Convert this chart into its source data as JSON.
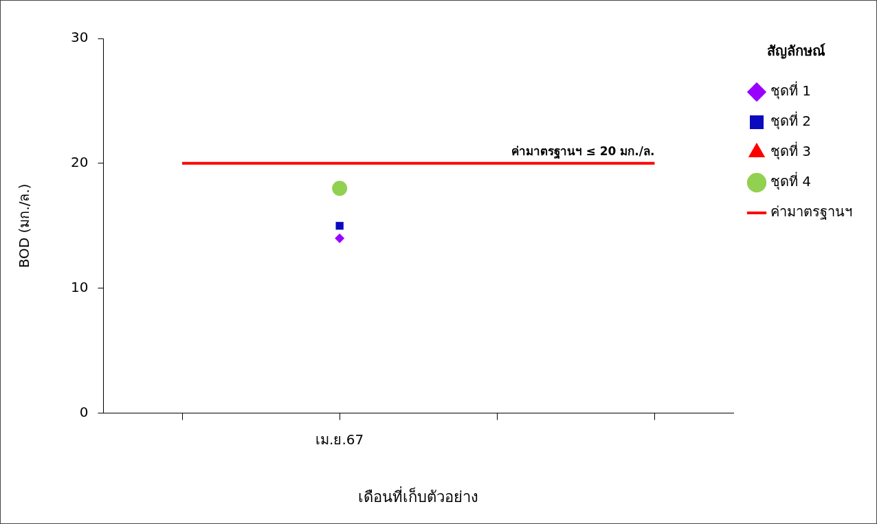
{
  "chart_data": {
    "type": "scatter",
    "xlabel": "เดือนที่เก็บตัวอย่าง",
    "ylabel": "BOD (มก./ล.)",
    "legend_title": "สัญลักษณ์",
    "legend": "right",
    "categories": [
      null,
      "เม.ย.67",
      null,
      null
    ],
    "series": [
      {
        "name": "ชุดที่ 1",
        "color": "#9900ff",
        "marker": "diamond",
        "values": [
          null,
          14,
          null,
          null
        ]
      },
      {
        "name": "ชุดที่ 2",
        "color": "#0a0abf",
        "marker": "square",
        "values": [
          null,
          15,
          null,
          null
        ]
      },
      {
        "name": "ชุดที่ 3",
        "color": "#ff0000",
        "marker": "triangle",
        "values": [
          null,
          null,
          null,
          null
        ]
      },
      {
        "name": "ชุดที่ 4",
        "color": "#92d050",
        "marker": "circle",
        "values": [
          null,
          18,
          null,
          null
        ]
      },
      {
        "name": "ค่ามาตรฐานฯ",
        "type": "line",
        "color": "#ff0000",
        "marker": "none",
        "values": [
          20,
          20,
          20,
          20
        ]
      }
    ],
    "ylim": [
      0,
      30
    ],
    "yticks": [
      0,
      10,
      20,
      30
    ],
    "grid": false,
    "annotations": [
      "ค่ามาตรฐานฯ ≤ 20 มก./ล."
    ]
  }
}
